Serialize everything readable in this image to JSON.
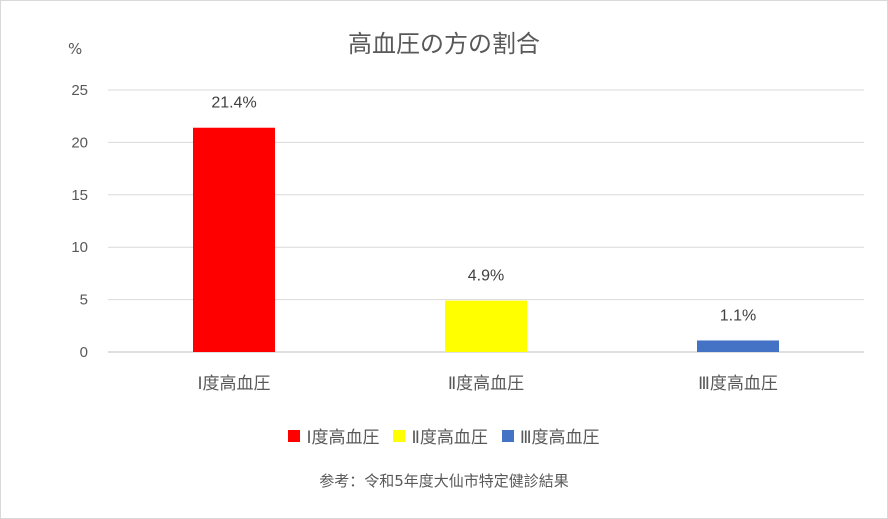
{
  "chart_data": {
    "type": "bar",
    "title": "高血圧の方の割合",
    "ylabel": "%",
    "ylim": [
      0,
      25
    ],
    "yticks": [
      0,
      5,
      10,
      15,
      20,
      25
    ],
    "grid": true,
    "legend_position": "bottom",
    "categories": [
      "Ⅰ度高血圧",
      "Ⅱ度高血圧",
      "Ⅲ度高血圧"
    ],
    "values": [
      21.4,
      4.9,
      1.1
    ],
    "data_labels": [
      "21.4%",
      "4.9%",
      "1.1%"
    ],
    "colors": [
      "#ff0000",
      "#ffff00",
      "#4472c4"
    ],
    "legend": [
      "Ⅰ度高血圧",
      "Ⅱ度高血圧",
      "Ⅲ度高血圧"
    ],
    "source_note": "参考：令和5年度大仙市特定健診結果"
  }
}
